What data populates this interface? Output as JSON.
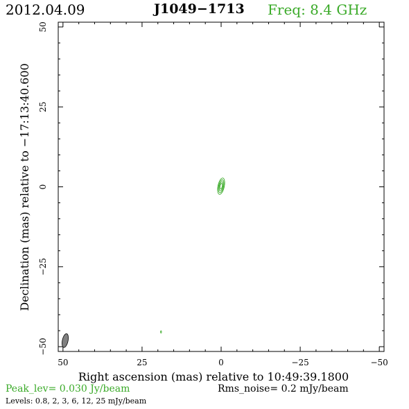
{
  "header": {
    "date": "2012.04.09",
    "source": "J1049−1713",
    "frequency": "Freq:  8.4  GHz"
  },
  "chart_data": {
    "type": "contour",
    "xlabel": "Right ascension (mas) relative to 10:49:39.1800",
    "ylabel": "Declination (mas) relative to −17:13:40.600",
    "xlim": [
      51.5,
      -51.5
    ],
    "ylim": [
      -51.5,
      51.5
    ],
    "xticks": [
      50,
      25,
      0,
      -25,
      -50
    ],
    "xtick_labels": [
      "50",
      "25",
      "0",
      "−25",
      "−50"
    ],
    "yticks": [
      50,
      25,
      0,
      -25,
      -50
    ],
    "ytick_labels": [
      "50",
      "25",
      "0",
      "−25",
      "−50"
    ],
    "peak": "Peak_lev=  0.030 Jy/beam",
    "rms": "Rms_noise=   0.2 mJy/beam",
    "levels_text": "Levels: 0.8,    2,    3,    6,   12,   25  mJy/beam",
    "levels_mJy": [
      0.8,
      2,
      3,
      6,
      12,
      25
    ],
    "components": [
      {
        "ra": 0.0,
        "dec": 0.2,
        "ra_axis": 1.0,
        "dec_axis": 2.6,
        "pa_deg": 12,
        "levels": 4,
        "color": "#3aaa28"
      },
      {
        "ra": 19.0,
        "dec": -45.4,
        "ra_axis": 0.15,
        "dec_axis": 0.35,
        "pa_deg": 0,
        "levels": 1,
        "color": "#3aaa28"
      }
    ],
    "beam": {
      "ra": 49.3,
      "dec": -48.1,
      "ra_axis": 0.9,
      "dec_axis": 2.2,
      "pa_deg": 12,
      "color": "#808080"
    }
  }
}
